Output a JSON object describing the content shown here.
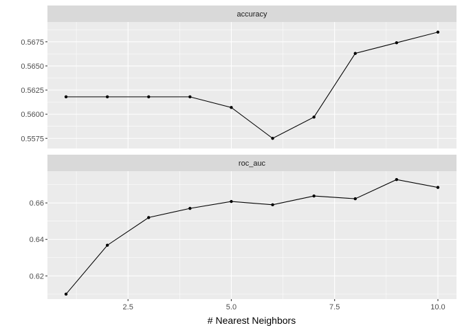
{
  "chart_data": {
    "type": "line",
    "xlabel": "# Nearest Neighbors",
    "x_ticks": [
      2.5,
      5.0,
      7.5,
      10.0
    ],
    "x_tick_labels": [
      "2.5",
      "5.0",
      "7.5",
      "10.0"
    ],
    "xlim": [
      0.55,
      10.45
    ],
    "grid": true,
    "colors": {
      "line": "#000000",
      "panel": "#ebebeb",
      "strip": "#d9d9d9",
      "grid": "#ffffff"
    },
    "facets": [
      {
        "strip": "accuracy",
        "x": [
          1,
          2,
          3,
          4,
          5,
          6,
          7,
          8,
          9,
          10
        ],
        "y": [
          0.5618,
          0.5618,
          0.5618,
          0.5618,
          0.5607,
          0.5575,
          0.5597,
          0.5663,
          0.5674,
          0.5685
        ],
        "ylim": [
          0.55645,
          0.56955
        ],
        "y_ticks": [
          0.5575,
          0.56,
          0.5625,
          0.565,
          0.5675
        ],
        "y_tick_labels": [
          "0.5575",
          "0.5600",
          "0.5625",
          "0.5650",
          "0.5675"
        ]
      },
      {
        "strip": "roc_auc",
        "x": [
          1,
          2,
          3,
          4,
          5,
          6,
          7,
          8,
          9,
          10
        ],
        "y": [
          0.61,
          0.6368,
          0.652,
          0.657,
          0.6608,
          0.659,
          0.6638,
          0.6623,
          0.6728,
          0.6685
        ],
        "ylim": [
          0.6073,
          0.6774
        ],
        "y_ticks": [
          0.62,
          0.64,
          0.66
        ],
        "y_tick_labels": [
          "0.62",
          "0.64",
          "0.66"
        ]
      }
    ]
  }
}
